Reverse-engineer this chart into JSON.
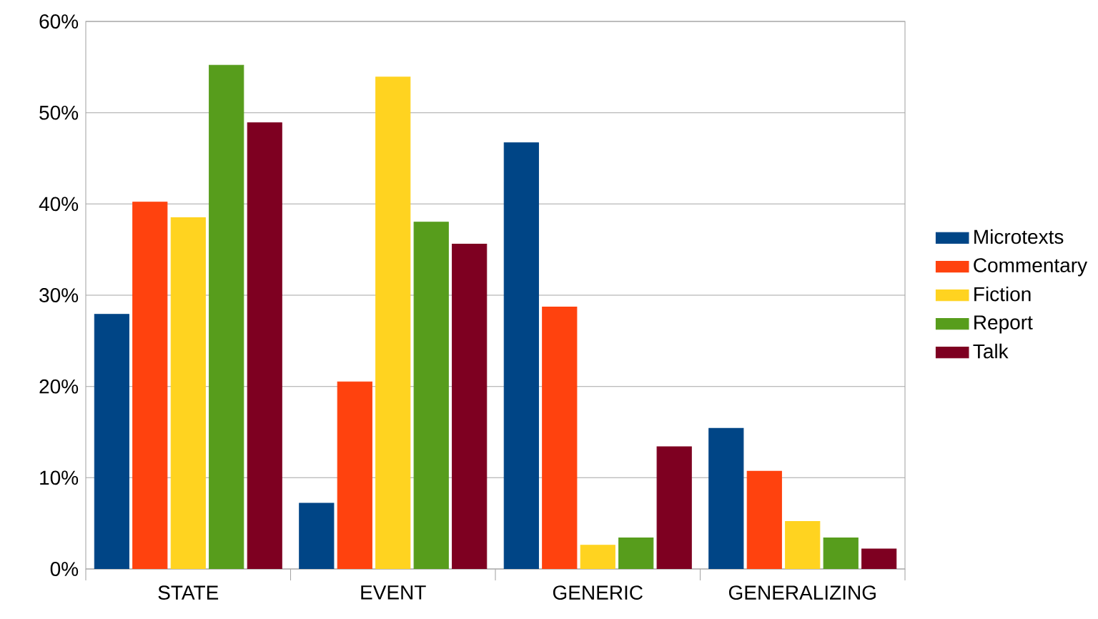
{
  "chart_data": {
    "type": "bar",
    "categories": [
      "STATE",
      "EVENT",
      "GENERIC",
      "GENERALIZING"
    ],
    "series": [
      {
        "name": "Microtexts",
        "color": "#004586",
        "values": [
          27.9,
          7.2,
          46.7,
          15.4
        ]
      },
      {
        "name": "Commentary",
        "color": "#ff420e",
        "values": [
          40.2,
          20.5,
          28.7,
          10.7
        ]
      },
      {
        "name": "Fiction",
        "color": "#ffd320",
        "values": [
          38.5,
          53.9,
          2.6,
          5.2
        ]
      },
      {
        "name": "Report",
        "color": "#579d1c",
        "values": [
          55.2,
          38.0,
          3.4,
          3.4
        ]
      },
      {
        "name": "Talk",
        "color": "#7e0021",
        "values": [
          48.9,
          35.6,
          13.4,
          2.2
        ]
      }
    ],
    "ylim": [
      0,
      60
    ],
    "yticks": [
      {
        "value": 0,
        "label": "0%"
      },
      {
        "value": 10,
        "label": "10%"
      },
      {
        "value": 20,
        "label": "20%"
      },
      {
        "value": 30,
        "label": "30%"
      },
      {
        "value": 40,
        "label": "40%"
      },
      {
        "value": 50,
        "label": "50%"
      },
      {
        "value": 60,
        "label": "60%"
      }
    ],
    "grid": "y",
    "legend": "right"
  }
}
